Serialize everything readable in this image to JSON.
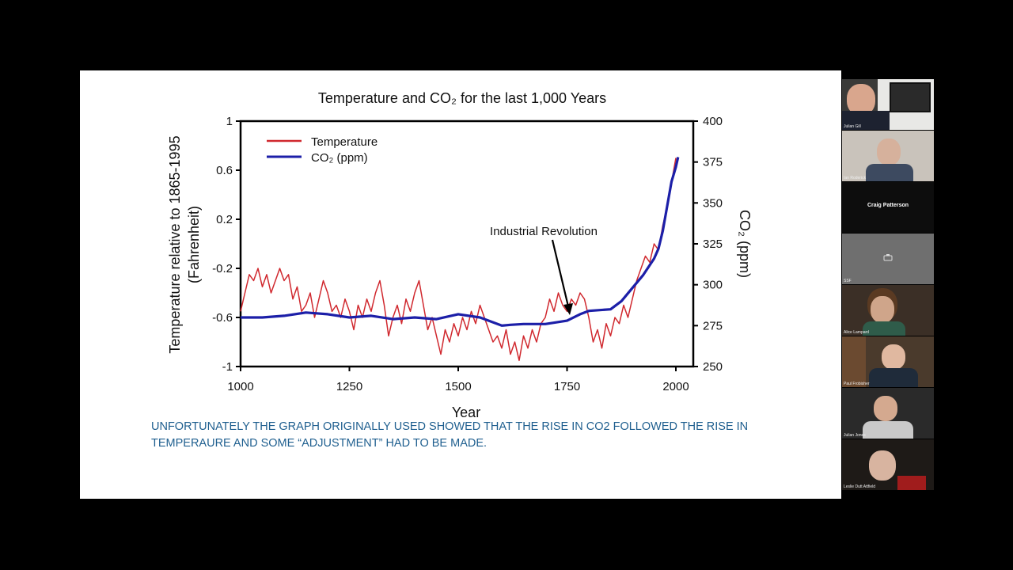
{
  "slide": {
    "note": "UNFORTUNATELY THE GRAPH ORIGINALLY USED SHOWED THAT THE RISE IN CO2 FOLLOWED THE RISE IN TEMPERAURE AND SOME “ADJUSTMENT” HAD TO BE MADE."
  },
  "chart_data": {
    "type": "line",
    "title": "Temperature and CO₂ for the last 1,000 Years",
    "xlabel": "Year",
    "ylabel_left": "Temperature relative to 1865-1995 (Fahrenheit)",
    "ylabel_left_lines": [
      "Temperature relative to 1865-1995",
      "(Fahrenheit)"
    ],
    "ylabel_right": "CO₂ (ppm)",
    "x_ticks": [
      "1000",
      "1250",
      "1500",
      "1750",
      "2000"
    ],
    "y_left_ticks": [
      "1",
      "0.6",
      "0.2",
      "-0.2",
      "-0.6",
      "-1"
    ],
    "y_right_ticks": [
      "400",
      "375",
      "350",
      "325",
      "300",
      "275",
      "250"
    ],
    "xlim": [
      1000,
      2040
    ],
    "ylim_left": [
      -1,
      1
    ],
    "ylim_right": [
      250,
      400
    ],
    "legend_position": "top-left",
    "annotation": {
      "text": "Industrial Revolution",
      "x": 1760,
      "y_right": 280
    },
    "series": [
      {
        "name": "Temperature",
        "axis": "left",
        "color": "#d0282e",
        "x": [
          1000,
          1010,
          1020,
          1030,
          1040,
          1050,
          1060,
          1070,
          1080,
          1090,
          1100,
          1110,
          1120,
          1130,
          1140,
          1150,
          1160,
          1170,
          1180,
          1190,
          1200,
          1210,
          1220,
          1230,
          1240,
          1250,
          1260,
          1270,
          1280,
          1290,
          1300,
          1310,
          1320,
          1330,
          1340,
          1350,
          1360,
          1370,
          1380,
          1390,
          1400,
          1410,
          1420,
          1430,
          1440,
          1450,
          1460,
          1470,
          1480,
          1490,
          1500,
          1510,
          1520,
          1530,
          1540,
          1550,
          1560,
          1570,
          1580,
          1590,
          1600,
          1610,
          1620,
          1630,
          1640,
          1650,
          1660,
          1670,
          1680,
          1690,
          1700,
          1710,
          1720,
          1730,
          1740,
          1750,
          1760,
          1770,
          1780,
          1790,
          1800,
          1810,
          1820,
          1830,
          1840,
          1850,
          1860,
          1870,
          1880,
          1890,
          1900,
          1910,
          1920,
          1930,
          1940,
          1950,
          1960,
          1970,
          1980,
          1990,
          2000
        ],
        "values": [
          -0.55,
          -0.4,
          -0.25,
          -0.3,
          -0.2,
          -0.35,
          -0.25,
          -0.4,
          -0.3,
          -0.2,
          -0.3,
          -0.25,
          -0.45,
          -0.35,
          -0.55,
          -0.5,
          -0.4,
          -0.6,
          -0.45,
          -0.3,
          -0.4,
          -0.55,
          -0.5,
          -0.6,
          -0.45,
          -0.55,
          -0.7,
          -0.5,
          -0.6,
          -0.45,
          -0.55,
          -0.4,
          -0.3,
          -0.5,
          -0.75,
          -0.6,
          -0.5,
          -0.65,
          -0.45,
          -0.55,
          -0.4,
          -0.3,
          -0.5,
          -0.7,
          -0.6,
          -0.75,
          -0.9,
          -0.7,
          -0.8,
          -0.65,
          -0.75,
          -0.6,
          -0.7,
          -0.55,
          -0.65,
          -0.5,
          -0.6,
          -0.7,
          -0.8,
          -0.75,
          -0.85,
          -0.7,
          -0.9,
          -0.8,
          -0.95,
          -0.75,
          -0.85,
          -0.7,
          -0.8,
          -0.65,
          -0.6,
          -0.45,
          -0.55,
          -0.4,
          -0.5,
          -0.55,
          -0.45,
          -0.5,
          -0.4,
          -0.45,
          -0.6,
          -0.8,
          -0.7,
          -0.85,
          -0.65,
          -0.75,
          -0.6,
          -0.65,
          -0.5,
          -0.6,
          -0.45,
          -0.3,
          -0.2,
          -0.1,
          -0.15,
          0.0,
          -0.05,
          0.15,
          0.3,
          0.5,
          0.7
        ]
      },
      {
        "name": "CO₂ (ppm)",
        "axis": "right",
        "color": "#1c1fa8",
        "x": [
          1000,
          1050,
          1100,
          1150,
          1200,
          1250,
          1300,
          1350,
          1400,
          1450,
          1500,
          1550,
          1600,
          1620,
          1650,
          1700,
          1750,
          1780,
          1800,
          1850,
          1875,
          1900,
          1925,
          1950,
          1960,
          1970,
          1980,
          1990,
          2000,
          2005
        ],
        "values": [
          280,
          280,
          281,
          283,
          282,
          280,
          281,
          279,
          280,
          279,
          282,
          280,
          275,
          275.5,
          276,
          276,
          278,
          282,
          284,
          285,
          290,
          298,
          306,
          316,
          322,
          333,
          348,
          363,
          372,
          378
        ]
      }
    ]
  },
  "participants": [
    {
      "name": "Julian Gill",
      "type": "video"
    },
    {
      "name": "Ian Roderick",
      "type": "video"
    },
    {
      "name": "Craig Patterson",
      "type": "name-only"
    },
    {
      "name": "SSF",
      "type": "camera-off"
    },
    {
      "name": "Alice Lampard",
      "type": "video"
    },
    {
      "name": "Paul Frobisher",
      "type": "video"
    },
    {
      "name": "Julian Jones",
      "type": "video"
    },
    {
      "name": "Leslie Dutt Attfield",
      "type": "video"
    }
  ]
}
